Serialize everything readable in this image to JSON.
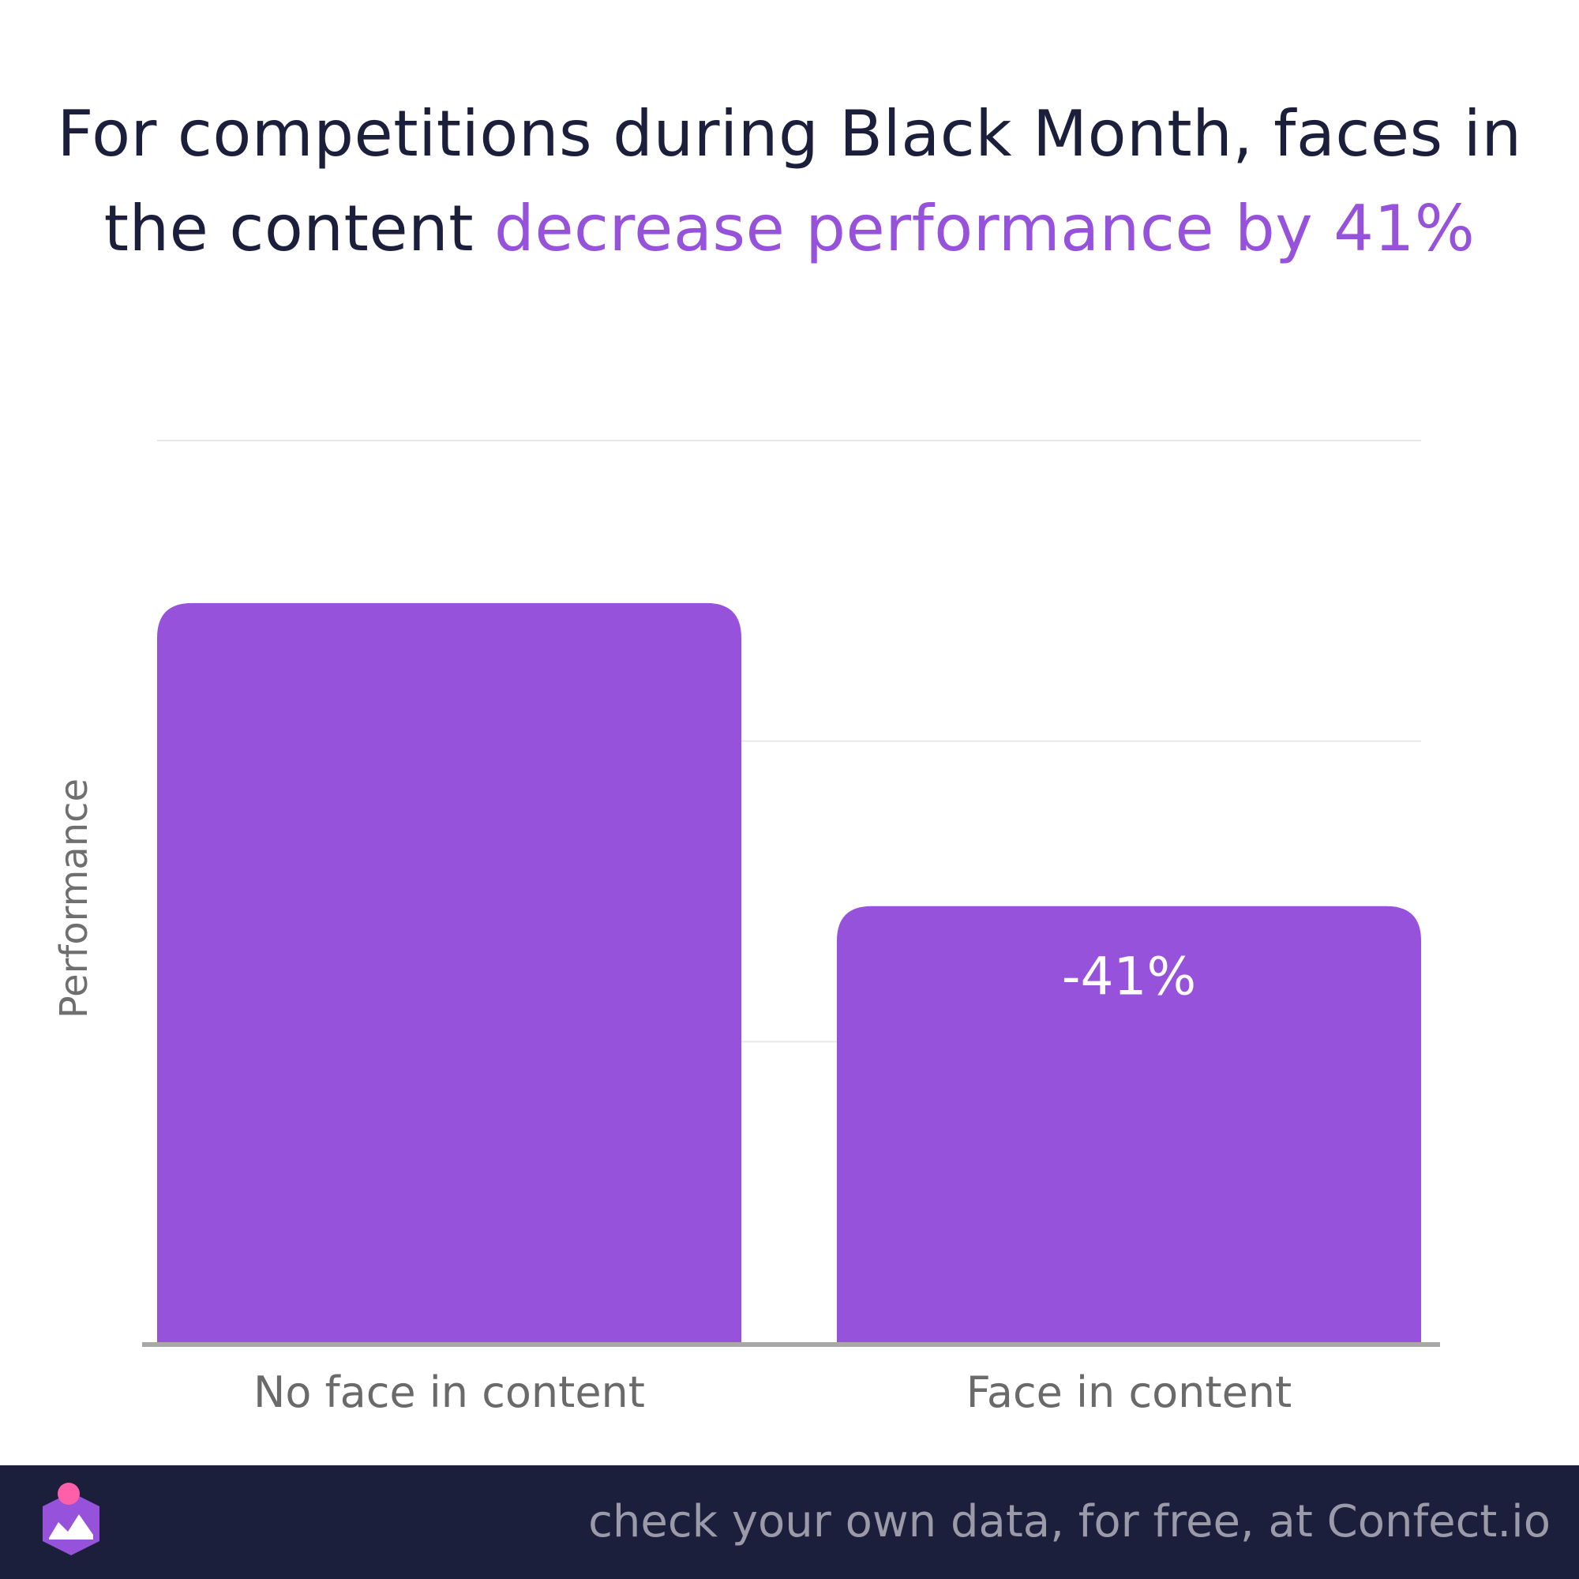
{
  "title": {
    "prefix": "For competitions during Black Month, faces in the content ",
    "highlight": "decrease performance by 41%"
  },
  "colors": {
    "bar": "#9752dc",
    "title_text": "#1c1f3c",
    "highlight": "#9752dc",
    "footer_bg": "#1c1f3c",
    "footer_text": "#9a9aa8",
    "gridline": "#e8e8e8",
    "baseline": "#a8a8a8"
  },
  "chart_data": {
    "type": "bar",
    "title": "For competitions during Black Month, faces in the content decrease performance by 41%",
    "ylabel": "Performance",
    "xlabel": "",
    "categories": [
      "No face in content",
      "Face in content"
    ],
    "values": [
      100,
      59
    ],
    "data_labels": [
      "",
      "-41%"
    ],
    "ylim": [
      0,
      122
    ],
    "grid": true,
    "legend": "none"
  },
  "footer": {
    "text": "check your own data, for free, at Confect.io",
    "logo_icon": "confect-logo-icon"
  }
}
